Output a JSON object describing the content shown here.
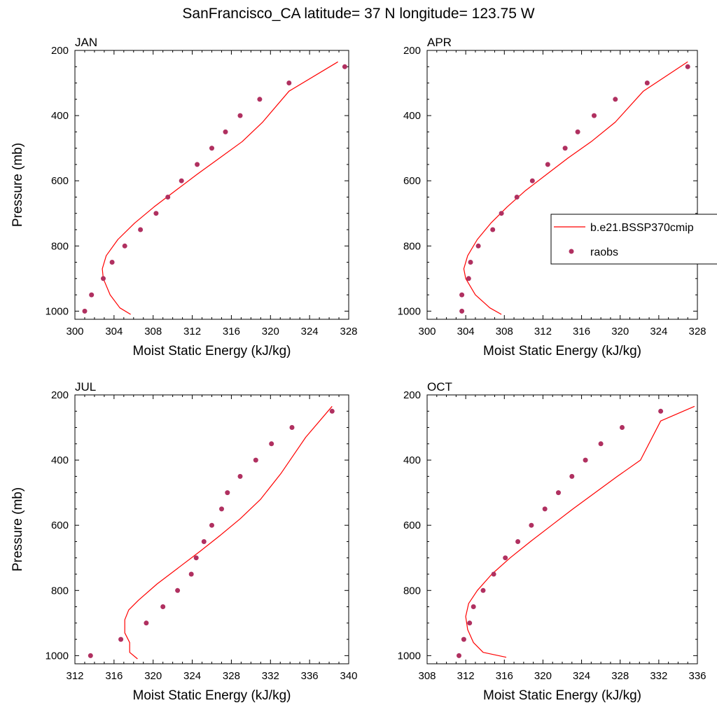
{
  "figure": {
    "title": "SanFrancisco_CA  latitude= 37 N longitude= 123.75 W"
  },
  "legend": {
    "model_label": "b.e21.BSSP370cmip",
    "obs_label": "raobs"
  },
  "colors": {
    "model_line": "#ff0000",
    "obs_marker": "#b03060",
    "axis": "#000000",
    "background": "#ffffff"
  },
  "chart_data": [
    {
      "type": "scatter",
      "panel_label": "JAN",
      "xlabel": "Moist Static Energy (kJ/kg)",
      "ylabel": "Pressure (mb)",
      "xlim": [
        300,
        328
      ],
      "ylim": [
        200,
        1025
      ],
      "y_reversed": true,
      "xticks": [
        300,
        304,
        308,
        312,
        316,
        320,
        324,
        328
      ],
      "yticks": [
        200,
        400,
        600,
        800,
        1000
      ],
      "series": [
        {
          "name": "b.e21.BSSP370cmip",
          "style": "line",
          "x": [
            305.7,
            304.6,
            303.6,
            302.9,
            302.8,
            303.2,
            304.4,
            306.1,
            308.1,
            310.3,
            312.5,
            314.8,
            317.1,
            319.2,
            321.9,
            326.9
          ],
          "y": [
            1010,
            990,
            950,
            900,
            870,
            830,
            780,
            730,
            680,
            630,
            580,
            530,
            480,
            420,
            325,
            235
          ]
        },
        {
          "name": "raobs",
          "style": "markers",
          "x": [
            301.0,
            301.7,
            302.9,
            303.8,
            305.1,
            306.7,
            308.3,
            309.5,
            310.9,
            312.5,
            314.0,
            315.4,
            316.9,
            318.9,
            321.9,
            327.6
          ],
          "y": [
            1000,
            950,
            900,
            850,
            800,
            750,
            700,
            650,
            600,
            550,
            500,
            450,
            400,
            350,
            300,
            250
          ]
        }
      ]
    },
    {
      "type": "scatter",
      "panel_label": "APR",
      "xlabel": "Moist Static Energy (kJ/kg)",
      "ylabel": "",
      "xlim": [
        300,
        328
      ],
      "ylim": [
        200,
        1025
      ],
      "y_reversed": true,
      "xticks": [
        300,
        304,
        308,
        312,
        316,
        320,
        324,
        328
      ],
      "yticks": [
        200,
        400,
        600,
        800,
        1000
      ],
      "series": [
        {
          "name": "b.e21.BSSP370cmip",
          "style": "line",
          "x": [
            307.7,
            306.5,
            305.0,
            304.0,
            303.8,
            304.2,
            305.2,
            306.6,
            308.3,
            310.2,
            312.4,
            314.6,
            317.0,
            319.5,
            322.4,
            327.0
          ],
          "y": [
            1010,
            990,
            950,
            900,
            870,
            830,
            780,
            730,
            680,
            630,
            580,
            530,
            480,
            420,
            325,
            235
          ]
        },
        {
          "name": "raobs",
          "style": "markers",
          "x": [
            303.6,
            303.6,
            304.3,
            304.5,
            305.3,
            306.8,
            307.7,
            309.3,
            310.9,
            312.5,
            314.3,
            315.6,
            317.3,
            319.5,
            322.8,
            327.0
          ],
          "y": [
            1000,
            950,
            900,
            850,
            800,
            750,
            700,
            650,
            600,
            550,
            500,
            450,
            400,
            350,
            300,
            250
          ]
        }
      ]
    },
    {
      "type": "scatter",
      "panel_label": "JUL",
      "xlabel": "Moist Static Energy (kJ/kg)",
      "ylabel": "Pressure (mb)",
      "xlim": [
        312,
        340
      ],
      "ylim": [
        200,
        1025
      ],
      "y_reversed": true,
      "xticks": [
        312,
        316,
        320,
        324,
        328,
        332,
        336,
        340
      ],
      "yticks": [
        200,
        400,
        600,
        800,
        1000
      ],
      "series": [
        {
          "name": "b.e21.BSSP370cmip",
          "style": "line",
          "x": [
            318.4,
            317.6,
            317.6,
            317.1,
            317.1,
            317.5,
            318.5,
            320.4,
            322.6,
            324.8,
            326.9,
            328.9,
            331.0,
            333.1,
            335.6,
            338.3
          ],
          "y": [
            1010,
            990,
            960,
            930,
            890,
            860,
            830,
            780,
            730,
            680,
            630,
            580,
            520,
            440,
            330,
            235
          ]
        },
        {
          "name": "raobs",
          "style": "markers",
          "x": [
            313.6,
            316.7,
            319.3,
            321.0,
            322.5,
            323.9,
            324.4,
            325.2,
            326.0,
            327.0,
            327.6,
            328.9,
            330.5,
            332.1,
            334.2,
            338.3
          ],
          "y": [
            1000,
            950,
            900,
            850,
            800,
            750,
            700,
            650,
            600,
            550,
            500,
            450,
            400,
            350,
            300,
            250
          ]
        }
      ]
    },
    {
      "type": "scatter",
      "panel_label": "OCT",
      "xlabel": "Moist Static Energy (kJ/kg)",
      "ylabel": "",
      "xlim": [
        308,
        336
      ],
      "ylim": [
        200,
        1025
      ],
      "y_reversed": true,
      "xticks": [
        308,
        312,
        316,
        320,
        324,
        328,
        332,
        336
      ],
      "yticks": [
        200,
        400,
        600,
        800,
        1000
      ],
      "series": [
        {
          "name": "b.e21.BSSP370cmip",
          "style": "line",
          "x": [
            316.2,
            313.8,
            312.8,
            312.2,
            312.0,
            312.3,
            313.2,
            314.7,
            316.6,
            318.7,
            320.9,
            323.1,
            325.4,
            327.7,
            330.1,
            332.2,
            335.7
          ],
          "y": [
            1005,
            990,
            960,
            920,
            880,
            840,
            800,
            750,
            700,
            650,
            600,
            550,
            500,
            450,
            400,
            280,
            235
          ]
        },
        {
          "name": "raobs",
          "style": "markers",
          "x": [
            311.3,
            311.8,
            312.4,
            312.8,
            313.8,
            314.9,
            316.1,
            317.4,
            318.8,
            320.2,
            321.6,
            323.0,
            324.4,
            326.0,
            328.2,
            332.2
          ],
          "y": [
            1000,
            950,
            900,
            850,
            800,
            750,
            700,
            650,
            600,
            550,
            500,
            450,
            400,
            350,
            300,
            250
          ]
        }
      ]
    }
  ]
}
